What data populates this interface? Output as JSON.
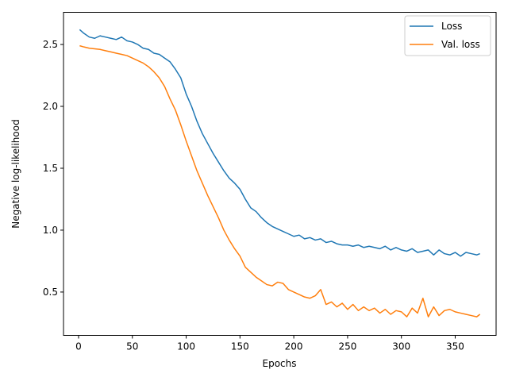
{
  "chart_data": {
    "type": "line",
    "title": "",
    "xlabel": "Epochs",
    "ylabel": "Negative log-likelihood",
    "xlim": [
      -14,
      388
    ],
    "ylim": [
      0.15,
      2.76
    ],
    "xticks": [
      0,
      50,
      100,
      150,
      200,
      250,
      300,
      350
    ],
    "yticks": [
      0.5,
      1.0,
      1.5,
      2.0,
      2.5
    ],
    "ytick_labels": [
      "0.5",
      "1.0",
      "1.5",
      "2.0",
      "2.5"
    ],
    "grid": false,
    "legend": {
      "placement": "top-right",
      "entries": [
        "Loss",
        "Val. loss"
      ]
    },
    "series": [
      {
        "name": "Loss",
        "color": "#1f77b4",
        "x": [
          1,
          5,
          10,
          15,
          20,
          25,
          30,
          35,
          40,
          45,
          50,
          55,
          60,
          65,
          70,
          75,
          80,
          85,
          90,
          95,
          100,
          105,
          110,
          115,
          120,
          125,
          130,
          135,
          140,
          145,
          150,
          155,
          160,
          165,
          170,
          175,
          180,
          185,
          190,
          195,
          200,
          205,
          210,
          215,
          220,
          225,
          230,
          235,
          240,
          245,
          250,
          255,
          260,
          265,
          270,
          275,
          280,
          285,
          290,
          295,
          300,
          305,
          310,
          315,
          320,
          325,
          330,
          335,
          340,
          345,
          350,
          355,
          360,
          365,
          370,
          373
        ],
        "y": [
          2.62,
          2.59,
          2.56,
          2.55,
          2.57,
          2.56,
          2.55,
          2.54,
          2.56,
          2.53,
          2.52,
          2.5,
          2.47,
          2.46,
          2.43,
          2.42,
          2.39,
          2.36,
          2.3,
          2.23,
          2.1,
          2.0,
          1.88,
          1.78,
          1.7,
          1.62,
          1.55,
          1.48,
          1.42,
          1.38,
          1.33,
          1.25,
          1.18,
          1.15,
          1.1,
          1.06,
          1.03,
          1.01,
          0.99,
          0.97,
          0.95,
          0.96,
          0.93,
          0.94,
          0.92,
          0.93,
          0.9,
          0.91,
          0.89,
          0.88,
          0.88,
          0.87,
          0.88,
          0.86,
          0.87,
          0.86,
          0.85,
          0.87,
          0.84,
          0.86,
          0.84,
          0.83,
          0.85,
          0.82,
          0.83,
          0.84,
          0.8,
          0.84,
          0.81,
          0.8,
          0.82,
          0.79,
          0.82,
          0.81,
          0.8,
          0.81
        ]
      },
      {
        "name": "Val. loss",
        "color": "#ff7f0e",
        "x": [
          1,
          5,
          10,
          15,
          20,
          25,
          30,
          35,
          40,
          45,
          50,
          55,
          60,
          65,
          70,
          75,
          80,
          85,
          90,
          95,
          100,
          105,
          110,
          115,
          120,
          125,
          130,
          135,
          140,
          145,
          150,
          155,
          160,
          165,
          170,
          175,
          180,
          185,
          190,
          195,
          200,
          205,
          210,
          215,
          220,
          225,
          230,
          235,
          240,
          245,
          250,
          255,
          260,
          265,
          270,
          275,
          280,
          285,
          290,
          295,
          300,
          305,
          310,
          315,
          320,
          325,
          330,
          335,
          340,
          345,
          350,
          355,
          360,
          365,
          370,
          373
        ],
        "y": [
          2.49,
          2.48,
          2.47,
          2.465,
          2.46,
          2.45,
          2.44,
          2.43,
          2.42,
          2.41,
          2.39,
          2.37,
          2.35,
          2.32,
          2.28,
          2.23,
          2.16,
          2.06,
          1.97,
          1.85,
          1.72,
          1.6,
          1.48,
          1.38,
          1.28,
          1.19,
          1.1,
          1.0,
          0.92,
          0.85,
          0.79,
          0.7,
          0.66,
          0.62,
          0.59,
          0.56,
          0.55,
          0.58,
          0.57,
          0.52,
          0.5,
          0.48,
          0.46,
          0.45,
          0.47,
          0.52,
          0.4,
          0.42,
          0.38,
          0.41,
          0.36,
          0.4,
          0.35,
          0.38,
          0.35,
          0.37,
          0.33,
          0.36,
          0.32,
          0.35,
          0.34,
          0.3,
          0.37,
          0.33,
          0.45,
          0.3,
          0.38,
          0.31,
          0.35,
          0.36,
          0.34,
          0.33,
          0.32,
          0.31,
          0.3,
          0.32
        ]
      }
    ]
  }
}
